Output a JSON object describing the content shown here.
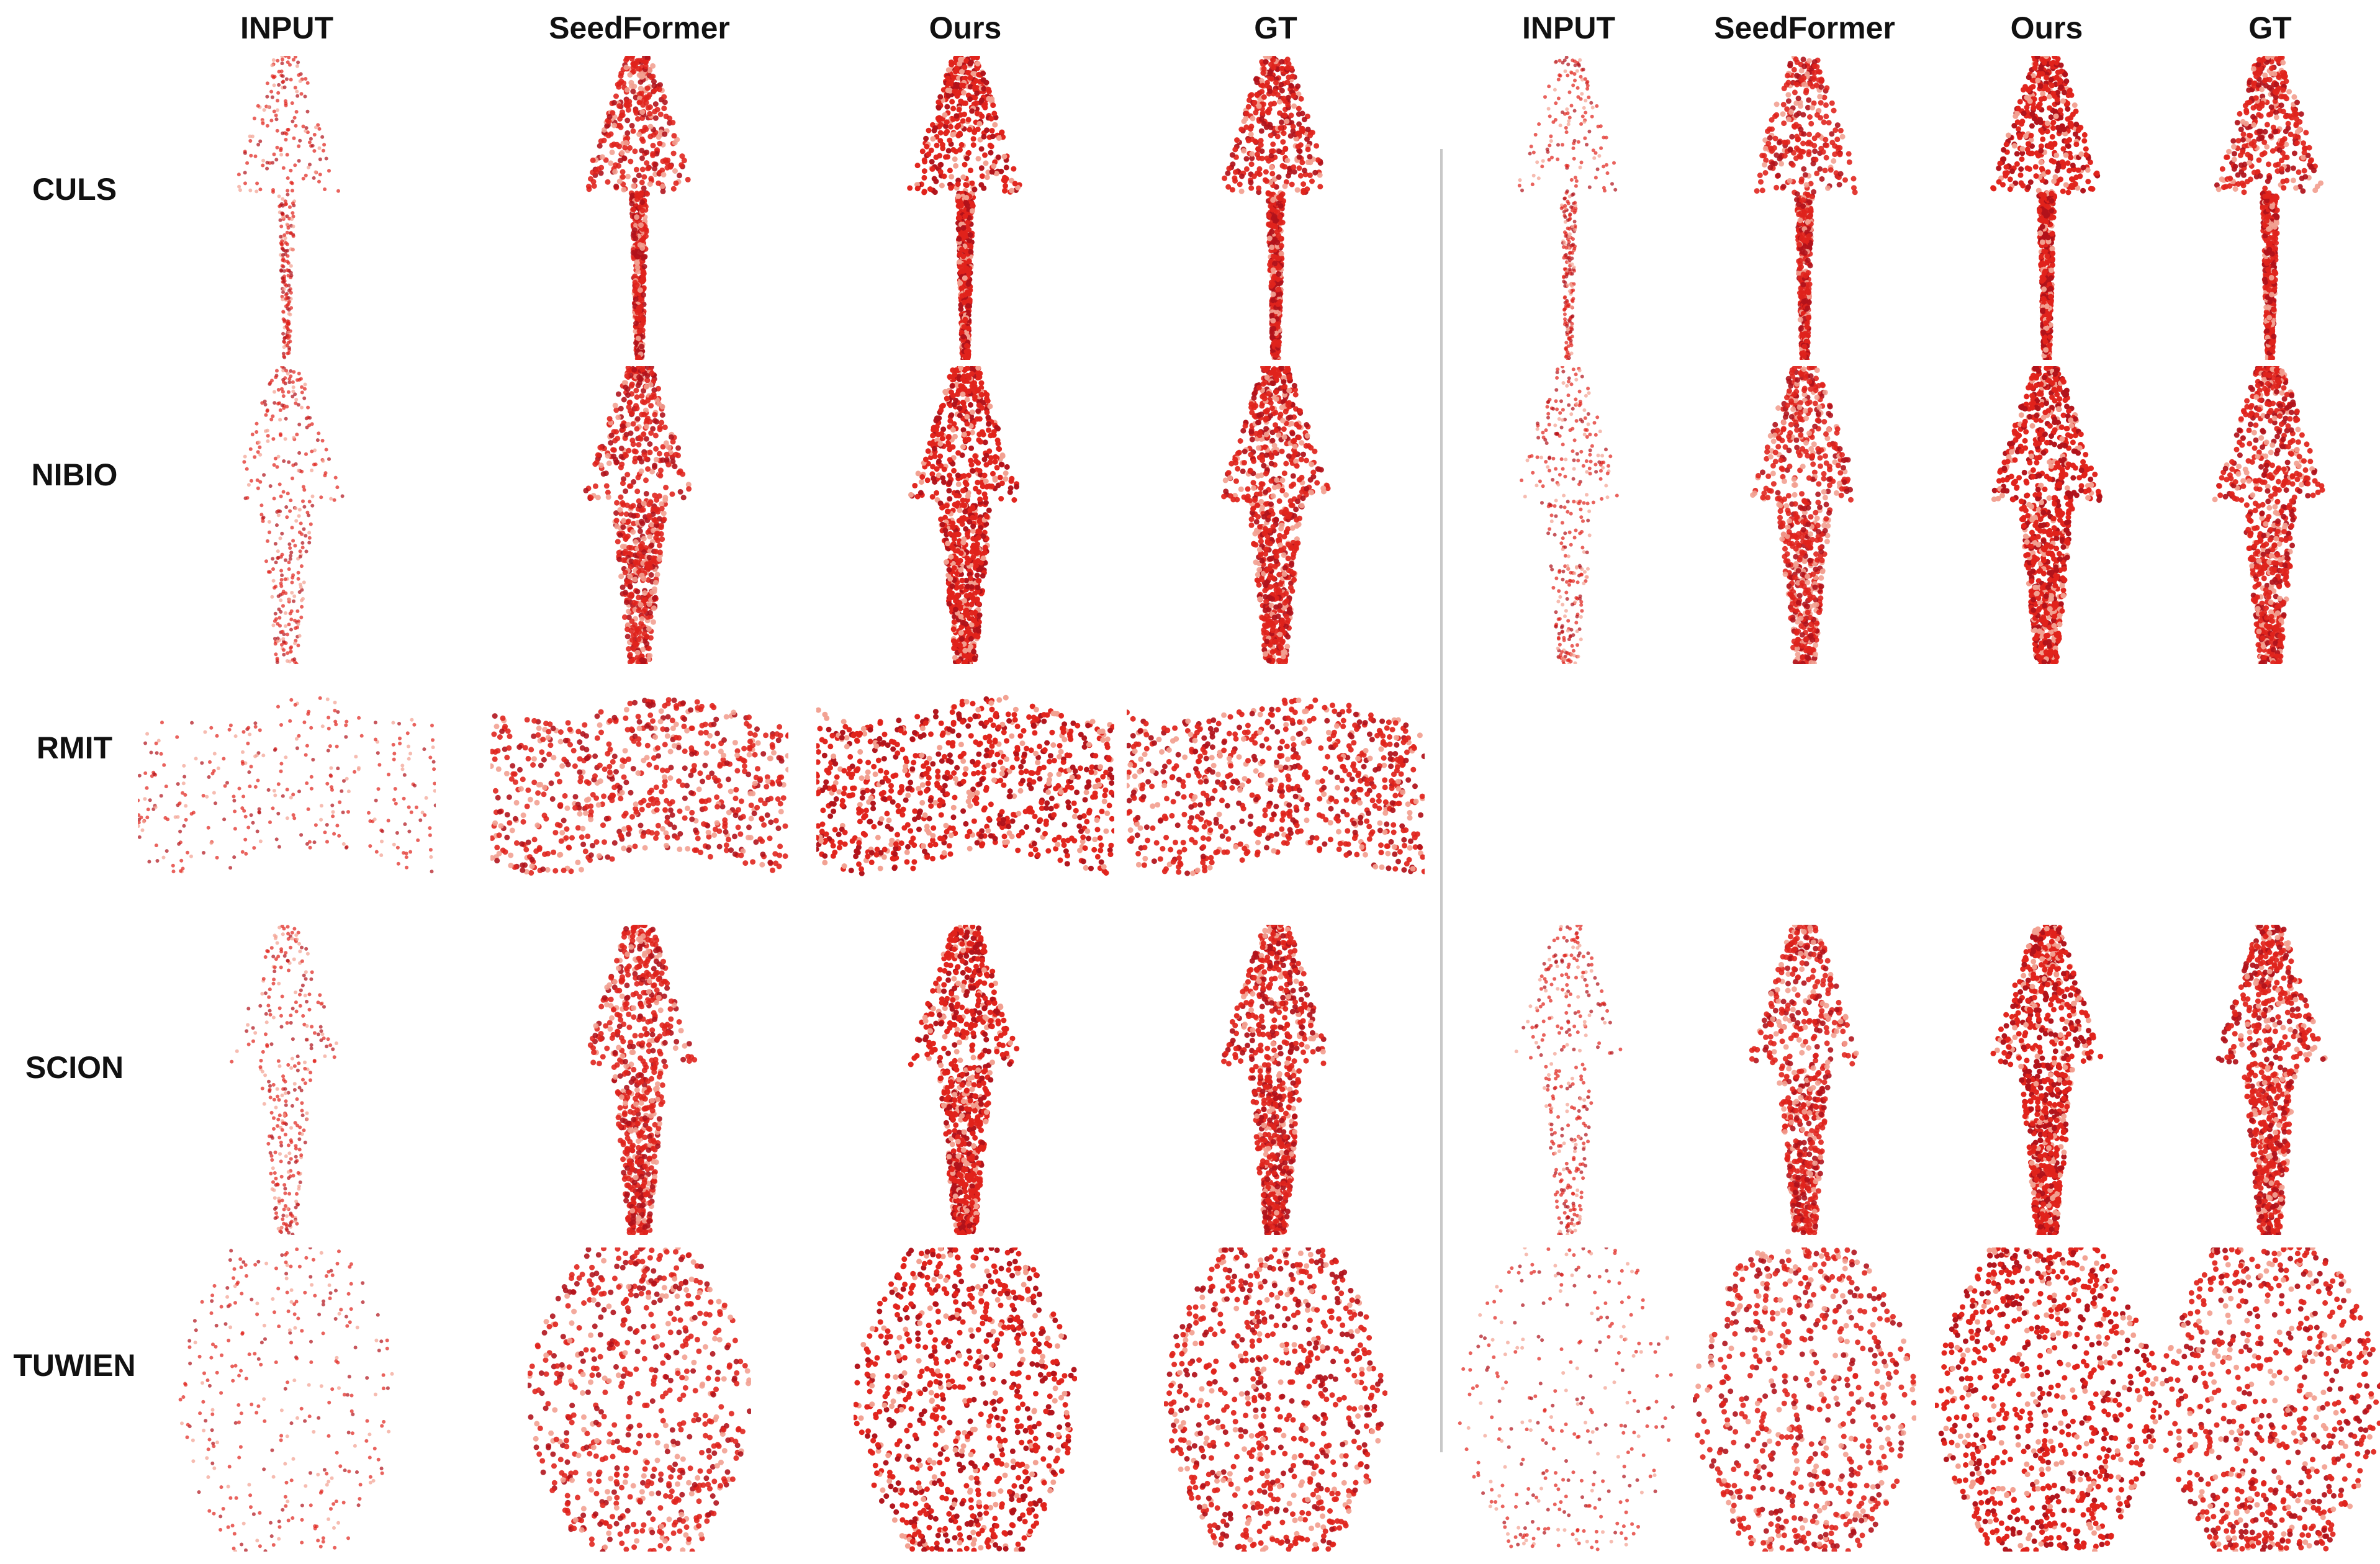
{
  "columns": [
    "INPUT",
    "SeedFormer",
    "Ours",
    "GT",
    "INPUT",
    "SeedFormer",
    "Ours",
    "GT"
  ],
  "rows": [
    "CULS",
    "NIBIO",
    "RMIT",
    "SCION",
    "TUWIEN"
  ],
  "colors": {
    "dense": "#e0231c",
    "dark": "#b0121b",
    "light": "#f2a091",
    "divider": "#c8c8c8"
  }
}
